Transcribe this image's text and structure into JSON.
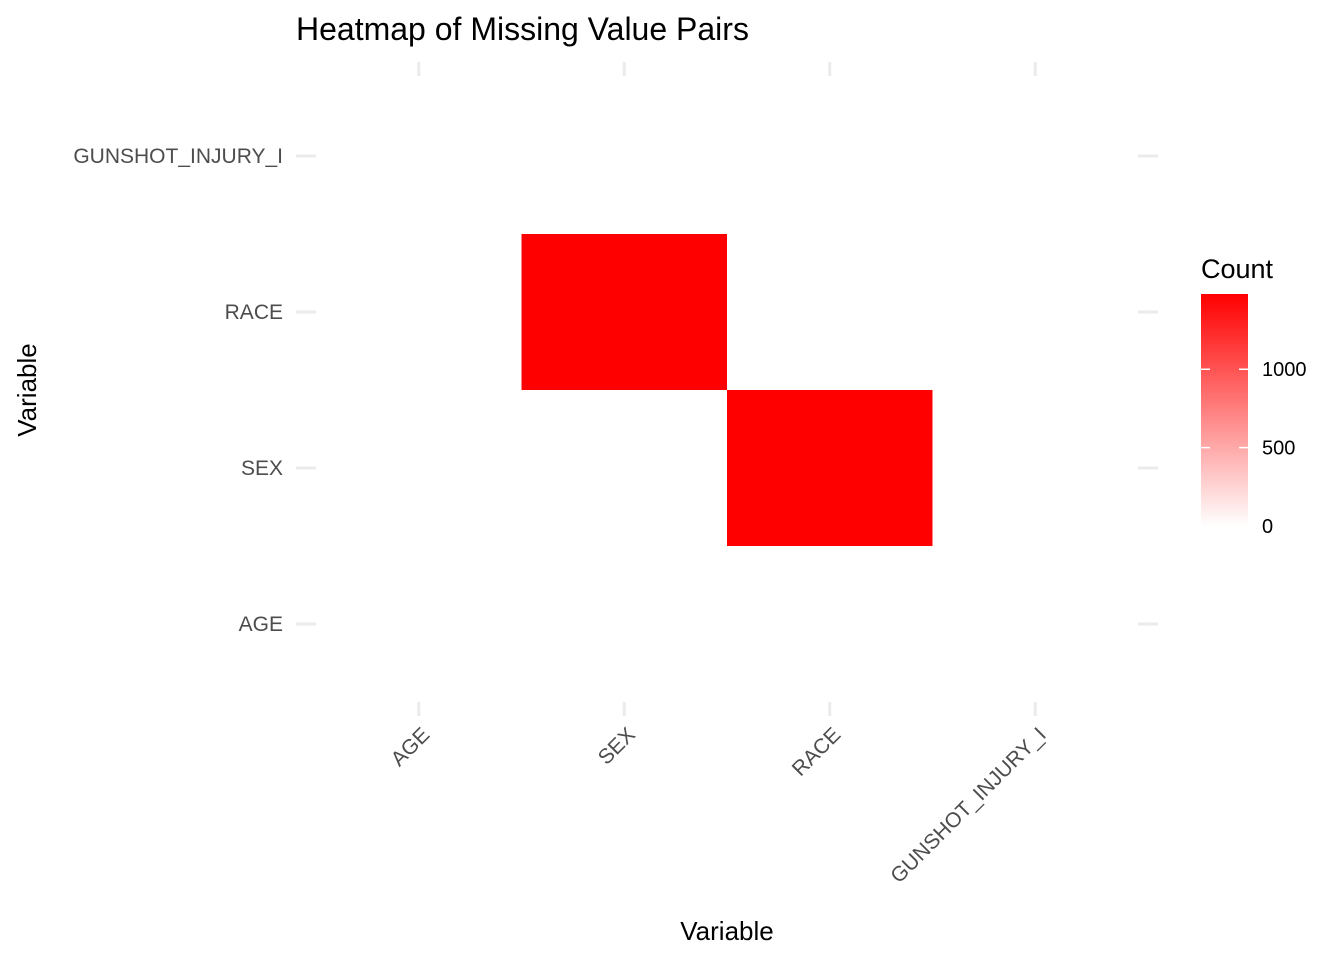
{
  "chart_data": {
    "type": "heatmap",
    "title": "Heatmap of Missing Value Pairs",
    "xlabel": "Variable",
    "ylabel": "Variable",
    "x_categories": [
      "AGE",
      "SEX",
      "RACE",
      "GUNSHOT_INJURY_I"
    ],
    "y_categories": [
      "AGE",
      "SEX",
      "RACE",
      "GUNSHOT_INJURY_I"
    ],
    "cells": [
      {
        "x": "SEX",
        "y": "RACE",
        "value": 1480
      },
      {
        "x": "RACE",
        "y": "SEX",
        "value": 1480
      }
    ],
    "legend": {
      "title": "Count",
      "placement": "right",
      "breaks": [
        0,
        500,
        1000
      ],
      "limits": [
        0,
        1480
      ],
      "low_color": "#ffffff",
      "high_color": "#ff0000"
    },
    "grid": false
  }
}
